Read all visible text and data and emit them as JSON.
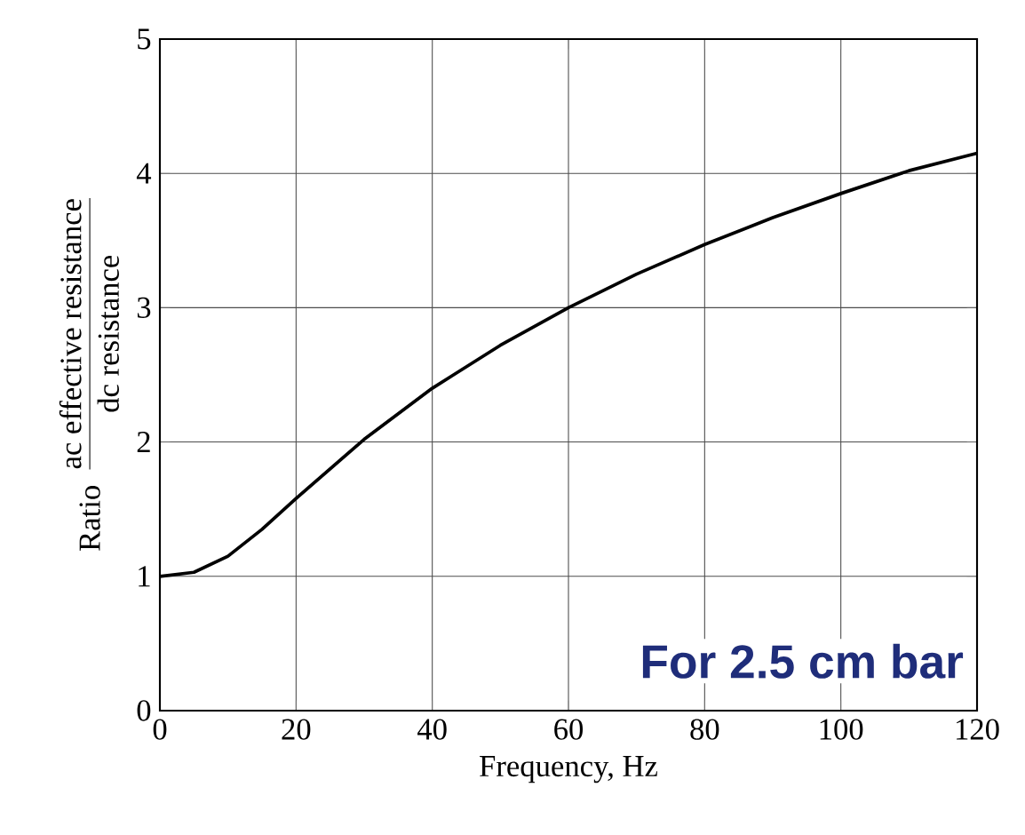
{
  "chart_data": {
    "type": "line",
    "xlabel": "Frequency, Hz",
    "ylabel": "Ratio",
    "annotations": [
      "ac effective resistance",
      "dc resistance",
      "For 2.5 cm bar"
    ],
    "x": [
      0,
      5,
      10,
      15,
      20,
      30,
      40,
      50,
      60,
      70,
      80,
      90,
      100,
      110,
      120
    ],
    "series": [
      {
        "color": "#000000",
        "values": [
          1.0,
          1.03,
          1.15,
          1.35,
          1.58,
          2.02,
          2.4,
          2.72,
          3.0,
          3.25,
          3.47,
          3.67,
          3.85,
          4.02,
          4.15
        ]
      }
    ],
    "xlim": [
      0,
      120
    ],
    "ylim": [
      0,
      5
    ],
    "xticks": [
      0,
      20,
      40,
      60,
      80,
      100,
      120
    ],
    "yticks": [
      0,
      1,
      2,
      3,
      4,
      5
    ],
    "grid": true,
    "marker": "none",
    "line_style": "solid"
  }
}
